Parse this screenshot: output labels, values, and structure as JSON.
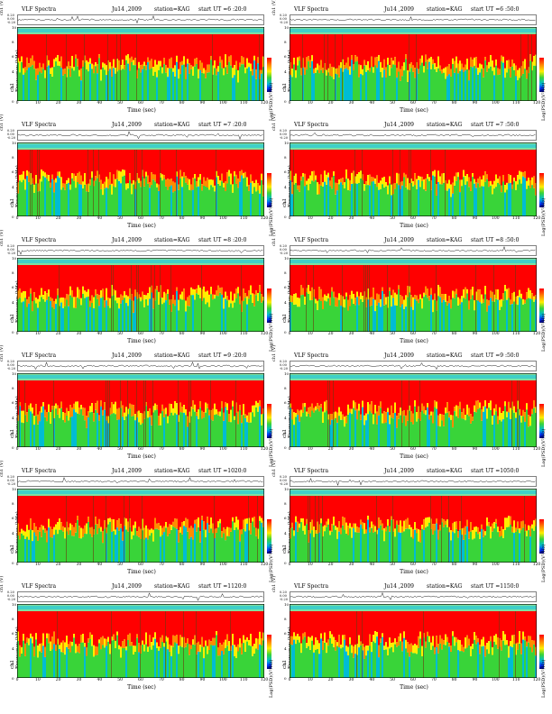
{
  "header": {
    "title": "VLF Spectra",
    "date": "Ju14 ,2009",
    "station": "station=KAG"
  },
  "labels": {
    "wave_ylabel": "ch1 (V)",
    "spec_ylabel_top": "ch1",
    "spec_ylabel_bottom": "Frequency (kHz)",
    "colorbar_label": "Log(PSD)(V²/Hz)",
    "xlabel": "Time (sec)"
  },
  "chart_data": [
    {
      "type": "heatmap",
      "start_ut": "start  UT =6 :20:0",
      "x_ticks": [
        "0",
        "10",
        "20",
        "30",
        "40",
        "50",
        "60",
        "70",
        "80",
        "90",
        "100",
        "110",
        "120"
      ],
      "xlim": [
        0,
        120
      ],
      "ylim": [
        0,
        10
      ],
      "y_ticks": [
        "0",
        "2",
        "4",
        "6",
        "8",
        "10"
      ],
      "wave_ticks": [
        "0.20",
        "0.00",
        "-0.20"
      ]
    },
    {
      "type": "heatmap",
      "start_ut": "start  UT =6 :50:0",
      "x_ticks": [
        "0",
        "10",
        "20",
        "30",
        "40",
        "50",
        "60",
        "70",
        "80",
        "90",
        "100",
        "110",
        "120"
      ],
      "xlim": [
        0,
        120
      ],
      "ylim": [
        0,
        10
      ],
      "y_ticks": [
        "0",
        "2",
        "4",
        "6",
        "8",
        "10"
      ],
      "wave_ticks": [
        "0.20",
        "0.00",
        "-0.20"
      ]
    },
    {
      "type": "heatmap",
      "start_ut": "start  UT =7 :20:0",
      "x_ticks": [
        "0",
        "10",
        "20",
        "30",
        "40",
        "50",
        "60",
        "70",
        "80",
        "90",
        "100",
        "110",
        "120"
      ],
      "xlim": [
        0,
        120
      ],
      "ylim": [
        0,
        10
      ],
      "y_ticks": [
        "0",
        "2",
        "4",
        "6",
        "8",
        "10"
      ],
      "wave_ticks": [
        "0.20",
        "0.00",
        "-0.20"
      ]
    },
    {
      "type": "heatmap",
      "start_ut": "start  UT =7 :50:0",
      "x_ticks": [
        "0",
        "10",
        "20",
        "30",
        "40",
        "50",
        "60",
        "70",
        "80",
        "90",
        "100",
        "110",
        "120"
      ],
      "xlim": [
        0,
        120
      ],
      "ylim": [
        0,
        10
      ],
      "y_ticks": [
        "0",
        "2",
        "4",
        "6",
        "8",
        "10"
      ],
      "wave_ticks": [
        "0.20",
        "0.00",
        "-0.20"
      ]
    },
    {
      "type": "heatmap",
      "start_ut": "start  UT =8 :20:0",
      "x_ticks": [
        "0",
        "10",
        "20",
        "30",
        "40",
        "50",
        "60",
        "70",
        "80",
        "90",
        "100",
        "110",
        "120"
      ],
      "xlim": [
        0,
        120
      ],
      "ylim": [
        0,
        10
      ],
      "y_ticks": [
        "0",
        "2",
        "4",
        "6",
        "8",
        "10"
      ],
      "wave_ticks": [
        "0.20",
        "0.00",
        "-0.20"
      ]
    },
    {
      "type": "heatmap",
      "start_ut": "start  UT =8 :50:0",
      "x_ticks": [
        "0",
        "10",
        "20",
        "30",
        "40",
        "50",
        "60",
        "70",
        "80",
        "90",
        "100",
        "110",
        "120"
      ],
      "xlim": [
        0,
        120
      ],
      "ylim": [
        0,
        10
      ],
      "y_ticks": [
        "0",
        "2",
        "4",
        "6",
        "8",
        "10"
      ],
      "wave_ticks": [
        "0.20",
        "0.00",
        "-0.20"
      ]
    },
    {
      "type": "heatmap",
      "start_ut": "start  UT =9 :20:0",
      "x_ticks": [
        "0",
        "10",
        "20",
        "30",
        "40",
        "50",
        "60",
        "70",
        "80",
        "90",
        "100",
        "110",
        "120"
      ],
      "xlim": [
        0,
        120
      ],
      "ylim": [
        0,
        10
      ],
      "y_ticks": [
        "0",
        "2",
        "4",
        "6",
        "8",
        "10"
      ],
      "wave_ticks": [
        "0.20",
        "0.00",
        "-0.20"
      ]
    },
    {
      "type": "heatmap",
      "start_ut": "start  UT =9 :50:0",
      "x_ticks": [
        "0",
        "10",
        "20",
        "30",
        "40",
        "50",
        "60",
        "70",
        "80",
        "90",
        "100",
        "110",
        "120"
      ],
      "xlim": [
        0,
        120
      ],
      "ylim": [
        0,
        10
      ],
      "y_ticks": [
        "0",
        "2",
        "4",
        "6",
        "8",
        "10"
      ],
      "wave_ticks": [
        "0.20",
        "0.00",
        "-0.20"
      ]
    },
    {
      "type": "heatmap",
      "start_ut": "start  UT =1020:0",
      "x_ticks": [
        "0",
        "10",
        "20",
        "30",
        "40",
        "50",
        "60",
        "70",
        "80",
        "90",
        "100",
        "110",
        "120"
      ],
      "xlim": [
        0,
        120
      ],
      "ylim": [
        0,
        10
      ],
      "y_ticks": [
        "0",
        "2",
        "4",
        "6",
        "8",
        "10"
      ],
      "wave_ticks": [
        "0.20",
        "0.00",
        "-0.20"
      ]
    },
    {
      "type": "heatmap",
      "start_ut": "start  UT =1050:0",
      "x_ticks": [
        "0",
        "10",
        "20",
        "30",
        "40",
        "50",
        "60",
        "70",
        "80",
        "90",
        "100",
        "110",
        "120"
      ],
      "xlim": [
        0,
        120
      ],
      "ylim": [
        0,
        10
      ],
      "y_ticks": [
        "0",
        "2",
        "4",
        "6",
        "8",
        "10"
      ],
      "wave_ticks": [
        "0.20",
        "0.00",
        "-0.20"
      ]
    },
    {
      "type": "heatmap",
      "start_ut": "start  UT =1120:0",
      "x_ticks": [
        "0",
        "10",
        "20",
        "30",
        "40",
        "50",
        "60",
        "70",
        "80",
        "90",
        "100",
        "110",
        "120"
      ],
      "xlim": [
        0,
        120
      ],
      "ylim": [
        0,
        10
      ],
      "y_ticks": [
        "0",
        "2",
        "4",
        "6",
        "8",
        "10"
      ],
      "wave_ticks": [
        "0.20",
        "0.00",
        "-0.20"
      ]
    },
    {
      "type": "heatmap",
      "start_ut": "start  UT =1150:0",
      "x_ticks": [
        "0",
        "10",
        "20",
        "30",
        "40",
        "50",
        "60",
        "70",
        "80",
        "90",
        "100",
        "110",
        "120"
      ],
      "xlim": [
        0,
        120
      ],
      "ylim": [
        0,
        10
      ],
      "y_ticks": [
        "0",
        "2",
        "4",
        "6",
        "8",
        "10"
      ],
      "wave_ticks": [
        "0.20",
        "0.00",
        "-0.20"
      ]
    }
  ],
  "colors": {
    "spectrum": [
      "#ff0000",
      "#ff8c00",
      "#ffee00",
      "#39d439",
      "#00bcd4"
    ],
    "background": "#ffffff"
  }
}
